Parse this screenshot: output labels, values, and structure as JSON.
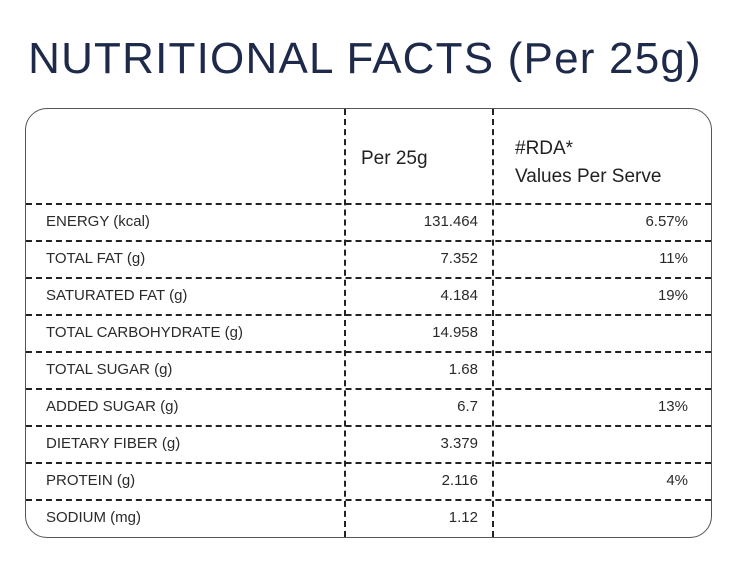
{
  "title": "NUTRITIONAL FACTS (Per 25g)",
  "header": {
    "col2": "Per 25g",
    "col3_line1": "#RDA*",
    "col3_line2": "Values Per Serve"
  },
  "rows": [
    {
      "label": "ENERGY (kcal)",
      "value": "131.464",
      "rda": "6.57%"
    },
    {
      "label": "TOTAL FAT (g)",
      "value": "7.352",
      "rda": "11%"
    },
    {
      "label": "SATURATED FAT (g)",
      "value": "4.184",
      "rda": "19%"
    },
    {
      "label": "TOTAL CARBOHYDRATE (g)",
      "value": "14.958",
      "rda": ""
    },
    {
      "label": "TOTAL SUGAR (g)",
      "value": "1.68",
      "rda": ""
    },
    {
      "label": "ADDED SUGAR (g)",
      "value": "6.7",
      "rda": "13%"
    },
    {
      "label": "DIETARY FIBER (g)",
      "value": "3.379",
      "rda": ""
    },
    {
      "label": "PROTEIN (g)",
      "value": "2.116",
      "rda": "4%"
    },
    {
      "label": "SODIUM (mg)",
      "value": "1.12",
      "rda": ""
    }
  ]
}
